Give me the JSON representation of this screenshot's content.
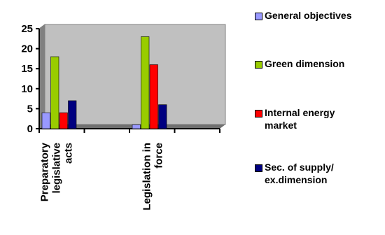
{
  "chart_data": {
    "type": "bar",
    "categories": [
      "Preparatory\nlegislative\nacts",
      "Legislation in\nforce"
    ],
    "series": [
      {
        "name": "General objectives",
        "color": "#9999ff",
        "values": [
          4,
          1
        ]
      },
      {
        "name": "Green dimension",
        "color": "#99cc00",
        "values": [
          18,
          23
        ]
      },
      {
        "name": "Internal energy\nmarket",
        "color": "#ff0000",
        "values": [
          4,
          16
        ]
      },
      {
        "name": "Sec. of supply/\nex.dimension",
        "color": "#000080",
        "values": [
          7,
          6
        ]
      }
    ],
    "y_ticks": [
      "0",
      "5",
      "10",
      "15",
      "20",
      "25"
    ],
    "ylim": [
      0,
      25
    ],
    "plot_background": "#c0c0c0",
    "grid": false,
    "legend_position": "right"
  }
}
